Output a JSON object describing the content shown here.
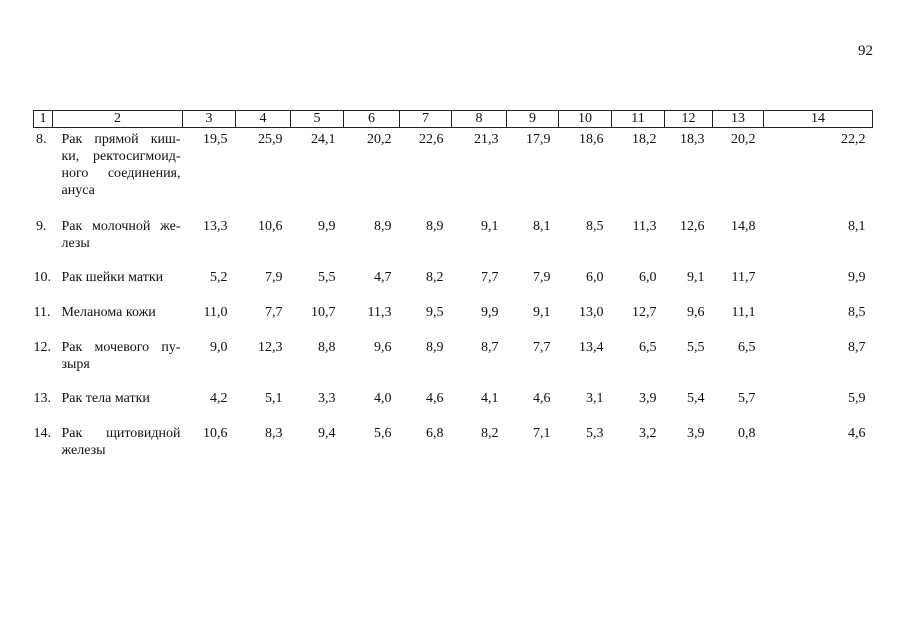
{
  "page_number": "92",
  "table": {
    "headers": [
      "1",
      "2",
      "3",
      "4",
      "5",
      "6",
      "7",
      "8",
      "9",
      "10",
      "11",
      "12",
      "13",
      "14"
    ],
    "rows": [
      {
        "num": "8.",
        "name": "Рак прямой киш-ки, ректосигмоид-ного соединения, ануса",
        "values": [
          "19,5",
          "25,9",
          "24,1",
          "20,2",
          "22,6",
          "21,3",
          "17,9",
          "18,6",
          "18,2",
          "18,3",
          "20,2",
          "22,2"
        ]
      },
      {
        "num": "9.",
        "name": "Рак молочной же-лезы",
        "values": [
          "13,3",
          "10,6",
          "9,9",
          "8,9",
          "8,9",
          "9,1",
          "8,1",
          "8,5",
          "11,3",
          "12,6",
          "14,8",
          "8,1"
        ]
      },
      {
        "num": "10.",
        "name": "Рак шейки матки",
        "values": [
          "5,2",
          "7,9",
          "5,5",
          "4,7",
          "8,2",
          "7,7",
          "7,9",
          "6,0",
          "6,0",
          "9,1",
          "11,7",
          "9,9"
        ]
      },
      {
        "num": "11.",
        "name": "Меланома кожи",
        "values": [
          "11,0",
          "7,7",
          "10,7",
          "11,3",
          "9,5",
          "9,9",
          "9,1",
          "13,0",
          "12,7",
          "9,6",
          "11,1",
          "8,5"
        ]
      },
      {
        "num": "12.",
        "name": "Рак мочевого пу-зыря",
        "values": [
          "9,0",
          "12,3",
          "8,8",
          "9,6",
          "8,9",
          "8,7",
          "7,7",
          "13,4",
          "6,5",
          "5,5",
          "6,5",
          "8,7"
        ]
      },
      {
        "num": "13.",
        "name": "Рак тела матки",
        "values": [
          "4,2",
          "5,1",
          "3,3",
          "4,0",
          "4,6",
          "4,1",
          "4,6",
          "3,1",
          "3,9",
          "5,4",
          "5,7",
          "5,9"
        ]
      },
      {
        "num": "14.",
        "name": "Рак щитовидной железы",
        "values": [
          "10,6",
          "8,3",
          "9,4",
          "5,6",
          "6,8",
          "8,2",
          "7,1",
          "5,3",
          "3,2",
          "3,9",
          "0,8",
          "4,6"
        ]
      }
    ]
  }
}
